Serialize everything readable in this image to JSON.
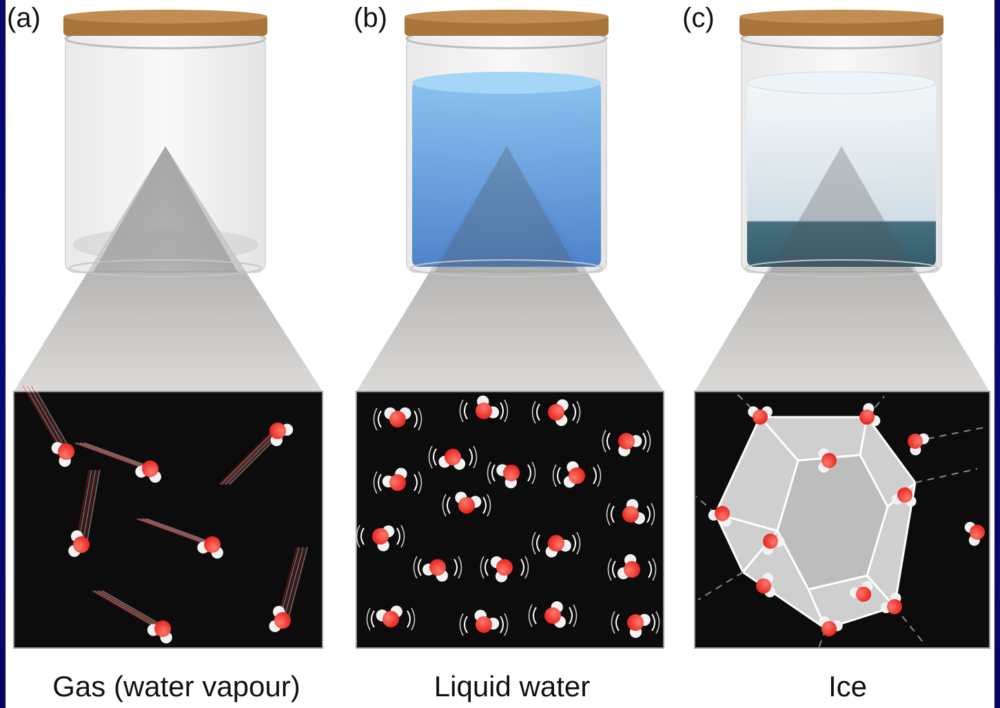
{
  "panels": [
    {
      "label": "(a)",
      "caption": "Gas (water vapour)",
      "state": "gas",
      "jar_fill": "empty"
    },
    {
      "label": "(b)",
      "caption": "Liquid water",
      "state": "liquid",
      "jar_fill": "#5b9be0"
    },
    {
      "label": "(c)",
      "caption": "Ice",
      "state": "solid",
      "jar_fill": "#dfe9ef"
    }
  ],
  "colors": {
    "frame": "#0a0a86",
    "oxygen": "#e8231c",
    "hydrogen": "#f2f2f2",
    "cork": "#a8743b",
    "zoom_cone": "#9a9896",
    "inset_bg": "#0c0c0c"
  },
  "icons": [
    "cork-lid-icon",
    "glass-jar-icon",
    "water-molecule-icon",
    "ice-cage-icon"
  ]
}
